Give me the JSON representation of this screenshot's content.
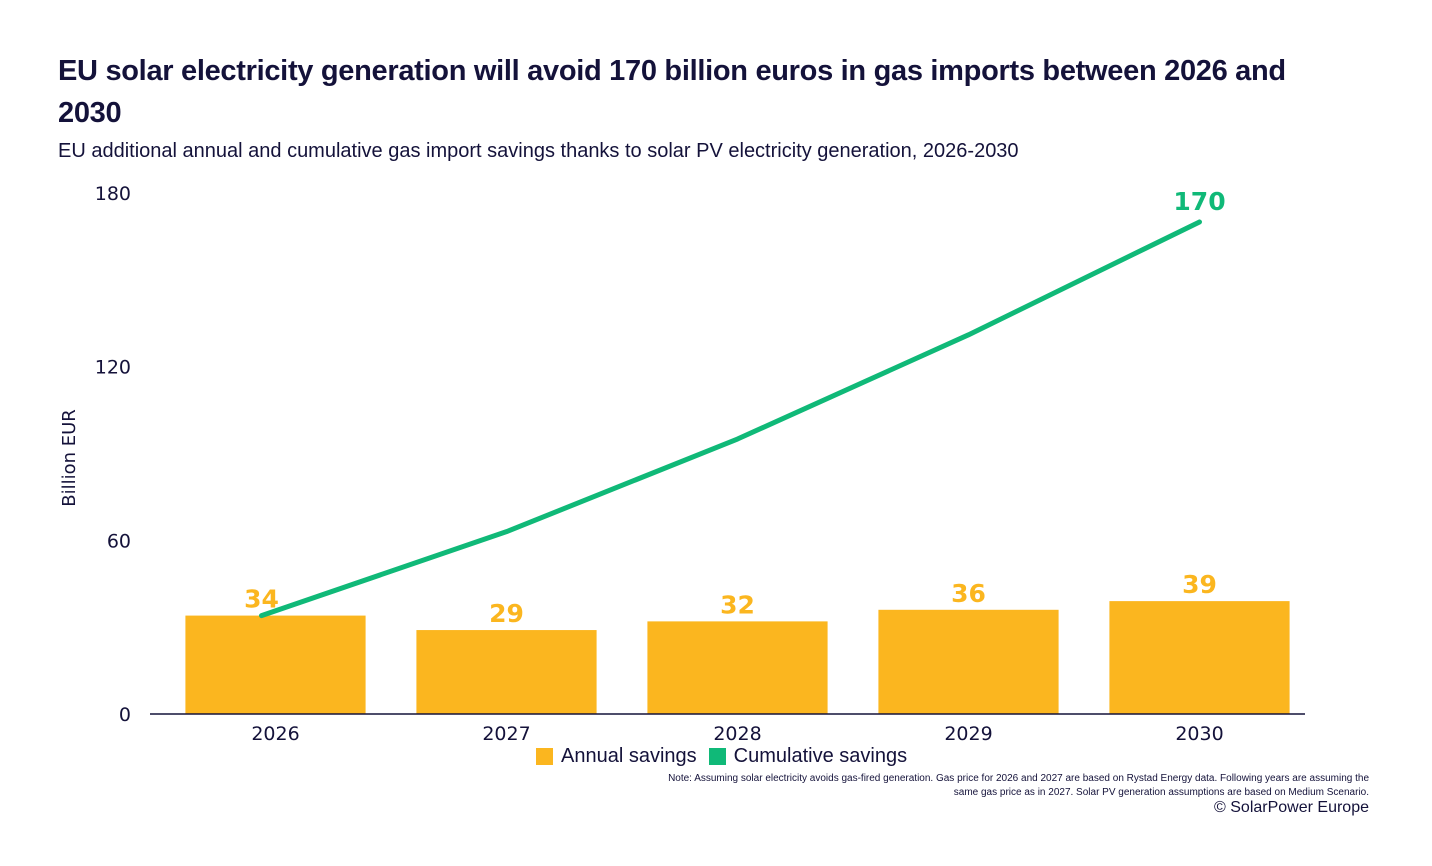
{
  "title": "EU solar electricity generation will avoid 170 billion euros in gas imports between 2026 and 2030",
  "subtitle": "EU additional annual and cumulative gas import savings thanks to solar PV electricity generation, 2026-2030",
  "note": "Note: Assuming solar electricity avoids gas-fired generation. Gas price for 2026 and 2027 are based on Rystad Energy data. Following years are assuming the same gas price as in 2027. Solar PV generation assumptions are based on Medium Scenario.",
  "copyright": "© SolarPower Europe",
  "colors": {
    "annual": "#fbb61f",
    "cumulative": "#10b978",
    "axis": "#14123a"
  },
  "chart_data": {
    "type": "bar",
    "title": "EU solar electricity generation will avoid 170 billion euros in gas imports between 2026 and 2030",
    "subtitle": "EU additional annual and cumulative gas import savings thanks to solar PV electricity generation, 2026-2030",
    "xlabel": "",
    "ylabel": "Billion EUR",
    "ylim": [
      0,
      180
    ],
    "yticks": [
      0,
      60,
      120,
      180
    ],
    "ytick_labels": [
      "0",
      "60",
      "120",
      "180"
    ],
    "categories": [
      "2026",
      "2027",
      "2028",
      "2029",
      "2030"
    ],
    "grid": false,
    "legend_position": "bottom",
    "series": [
      {
        "name": "Annual savings",
        "type": "bar",
        "color": "#fbb61f",
        "values": [
          34,
          29,
          32,
          36,
          39
        ],
        "data_labels": [
          "34",
          "29",
          "32",
          "36",
          "39"
        ]
      },
      {
        "name": "Cumulative savings",
        "type": "line",
        "color": "#10b978",
        "values": [
          34,
          63,
          95,
          131,
          170
        ],
        "data_labels": [
          "",
          "",
          "",
          "",
          "170"
        ]
      }
    ]
  }
}
